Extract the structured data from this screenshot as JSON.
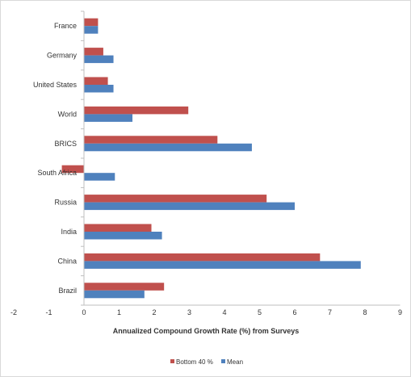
{
  "chart_data": {
    "type": "bar",
    "orientation": "horizontal",
    "categories": [
      "France",
      "Germany",
      "United States",
      "World",
      "BRICS",
      "South Africa",
      "Russia",
      "India",
      "China",
      "Brazil"
    ],
    "series": [
      {
        "name": "Bottom 40 %",
        "color": "#c0504d",
        "values": [
          0.4,
          0.55,
          0.68,
          2.97,
          3.8,
          -0.63,
          5.2,
          1.92,
          6.72,
          2.28
        ]
      },
      {
        "name": "Mean",
        "color": "#4f81bd",
        "values": [
          0.4,
          0.84,
          0.84,
          1.38,
          4.78,
          0.88,
          6.0,
          2.22,
          7.88,
          1.72
        ]
      }
    ],
    "xlabel": "Annualized Compound Growth Rate (%) from Surveys",
    "ylabel": "",
    "xlim": [
      -2,
      9
    ],
    "xticks": [
      "-2",
      "-1",
      "0",
      "1",
      "2",
      "3",
      "4",
      "5",
      "6",
      "7",
      "8",
      "9"
    ],
    "grid": false,
    "legend_position": "bottom"
  }
}
